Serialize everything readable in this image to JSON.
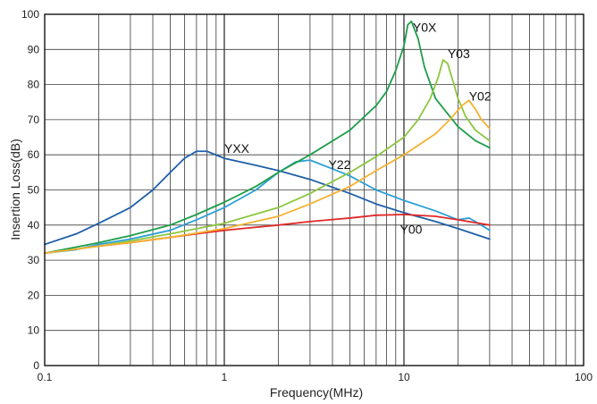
{
  "chart_data": {
    "type": "line",
    "title": "",
    "xlabel": "Frequency(MHz)",
    "ylabel": "Insertion Loss(dB)",
    "x_scale": "log",
    "xlim": [
      0.1,
      100
    ],
    "ylim": [
      0,
      100
    ],
    "x_ticks": [
      0.1,
      1,
      10,
      100
    ],
    "x_tick_labels": [
      "0.1",
      "1",
      "10",
      "100"
    ],
    "y_ticks": [
      0,
      10,
      20,
      30,
      40,
      50,
      60,
      70,
      80,
      90,
      100
    ],
    "y_tick_labels": [
      "0",
      "10",
      "20",
      "30",
      "40",
      "50",
      "60",
      "70",
      "80",
      "90",
      "100"
    ],
    "grid": true,
    "legend": "none",
    "series": [
      {
        "name": "YXX",
        "color": "#1f5fa8",
        "points": [
          [
            0.1,
            34.5
          ],
          [
            0.15,
            37.5
          ],
          [
            0.2,
            40.5
          ],
          [
            0.3,
            45
          ],
          [
            0.4,
            50
          ],
          [
            0.5,
            55
          ],
          [
            0.6,
            59
          ],
          [
            0.7,
            61
          ],
          [
            0.8,
            61
          ],
          [
            1,
            59
          ],
          [
            1.5,
            57
          ],
          [
            2,
            55.5
          ],
          [
            3,
            53
          ],
          [
            5,
            49
          ],
          [
            7,
            46
          ],
          [
            10,
            43.5
          ],
          [
            15,
            41
          ],
          [
            20,
            39
          ],
          [
            30,
            36
          ]
        ]
      },
      {
        "name": "Y22",
        "color": "#2a9fd8",
        "points": [
          [
            0.1,
            32
          ],
          [
            0.15,
            33
          ],
          [
            0.2,
            34.5
          ],
          [
            0.3,
            36
          ],
          [
            0.5,
            38.5
          ],
          [
            0.7,
            41.5
          ],
          [
            1,
            45
          ],
          [
            1.5,
            50
          ],
          [
            2,
            55
          ],
          [
            2.5,
            58
          ],
          [
            3,
            58.5
          ],
          [
            4,
            56
          ],
          [
            5,
            54
          ],
          [
            7,
            50
          ],
          [
            10,
            47
          ],
          [
            15,
            44
          ],
          [
            20,
            41.5
          ],
          [
            23,
            42
          ],
          [
            25,
            41
          ],
          [
            30,
            38.5
          ]
        ]
      },
      {
        "name": "Y00",
        "color": "#e02828",
        "points": [
          [
            0.1,
            32
          ],
          [
            0.2,
            34
          ],
          [
            0.3,
            35
          ],
          [
            0.5,
            36.5
          ],
          [
            0.7,
            37.5
          ],
          [
            1,
            38.5
          ],
          [
            2,
            40
          ],
          [
            3,
            41
          ],
          [
            5,
            42
          ],
          [
            7,
            42.8
          ],
          [
            10,
            43
          ],
          [
            15,
            42.5
          ],
          [
            20,
            41.5
          ],
          [
            30,
            40
          ]
        ]
      },
      {
        "name": "Y0X",
        "color": "#1e9e4a",
        "points": [
          [
            0.1,
            32
          ],
          [
            0.2,
            35
          ],
          [
            0.3,
            37
          ],
          [
            0.5,
            40
          ],
          [
            0.7,
            43
          ],
          [
            1,
            46.5
          ],
          [
            1.5,
            51
          ],
          [
            2,
            55
          ],
          [
            3,
            60
          ],
          [
            5,
            67
          ],
          [
            7,
            74
          ],
          [
            8,
            78
          ],
          [
            9,
            84
          ],
          [
            10,
            91
          ],
          [
            10.5,
            97
          ],
          [
            11,
            98
          ],
          [
            12,
            93
          ],
          [
            13,
            85
          ],
          [
            15,
            76
          ],
          [
            20,
            68
          ],
          [
            25,
            64
          ],
          [
            30,
            62
          ]
        ]
      },
      {
        "name": "Y03",
        "color": "#8cc63f",
        "points": [
          [
            0.1,
            32
          ],
          [
            0.2,
            34
          ],
          [
            0.3,
            35.5
          ],
          [
            0.5,
            37.5
          ],
          [
            1,
            40.5
          ],
          [
            2,
            45
          ],
          [
            3,
            49
          ],
          [
            5,
            55
          ],
          [
            7,
            59.5
          ],
          [
            10,
            65
          ],
          [
            12,
            70
          ],
          [
            14,
            76
          ],
          [
            15.5,
            82
          ],
          [
            16.5,
            87
          ],
          [
            17.5,
            86
          ],
          [
            19,
            80
          ],
          [
            20,
            76
          ],
          [
            22,
            71
          ],
          [
            25,
            67
          ],
          [
            30,
            64
          ]
        ]
      },
      {
        "name": "Y02",
        "color": "#f5b230",
        "points": [
          [
            0.1,
            32
          ],
          [
            0.2,
            34
          ],
          [
            0.3,
            35
          ],
          [
            0.5,
            36.5
          ],
          [
            1,
            39
          ],
          [
            2,
            42.5
          ],
          [
            3,
            46
          ],
          [
            5,
            51
          ],
          [
            7,
            55.5
          ],
          [
            10,
            60
          ],
          [
            15,
            66
          ],
          [
            18,
            70
          ],
          [
            21,
            74
          ],
          [
            23,
            75.5
          ],
          [
            25,
            73
          ],
          [
            27,
            70
          ],
          [
            30,
            67.5
          ]
        ]
      }
    ],
    "annotations": [
      {
        "text": "YXX",
        "x": 1.0,
        "y": 60.5
      },
      {
        "text": "Y22",
        "x": 3.8,
        "y": 56
      },
      {
        "text": "Y00",
        "x": 9.5,
        "y": 37.5
      },
      {
        "text": "Y0X",
        "x": 11.2,
        "y": 95
      },
      {
        "text": "Y03",
        "x": 17.5,
        "y": 87.5
      },
      {
        "text": "Y02",
        "x": 23,
        "y": 75.5
      }
    ]
  }
}
